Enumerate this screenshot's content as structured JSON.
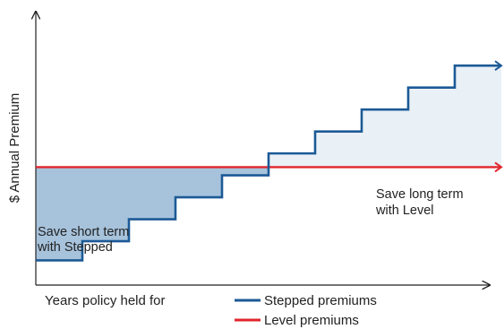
{
  "chart_data": {
    "type": "line",
    "title": "",
    "xlabel": "Years policy held for",
    "ylabel": "$ Annual Premium",
    "xlim": [
      0,
      10
    ],
    "ylim": [
      0,
      10
    ],
    "grid": false,
    "legend_position": "bottom",
    "series": [
      {
        "name": "Stepped premiums",
        "color": "#1c5a96",
        "step": true,
        "x": [
          0,
          1,
          2,
          3,
          4,
          5,
          6,
          7,
          8,
          9,
          10
        ],
        "y": [
          0.9,
          1.6,
          2.4,
          3.2,
          4.0,
          4.8,
          5.6,
          6.4,
          7.2,
          8.0,
          8.8
        ]
      },
      {
        "name": "Level premiums",
        "color": "#e0262d",
        "step": false,
        "x": [
          0,
          10
        ],
        "y": [
          4.3,
          4.3
        ]
      }
    ],
    "annotations": [
      {
        "line1": "Save short term",
        "line2": "with Stepped",
        "fill": "#a7c3dc"
      },
      {
        "line1": "Save long term",
        "line2": "with Level",
        "fill": "#e9f0f6"
      }
    ]
  }
}
